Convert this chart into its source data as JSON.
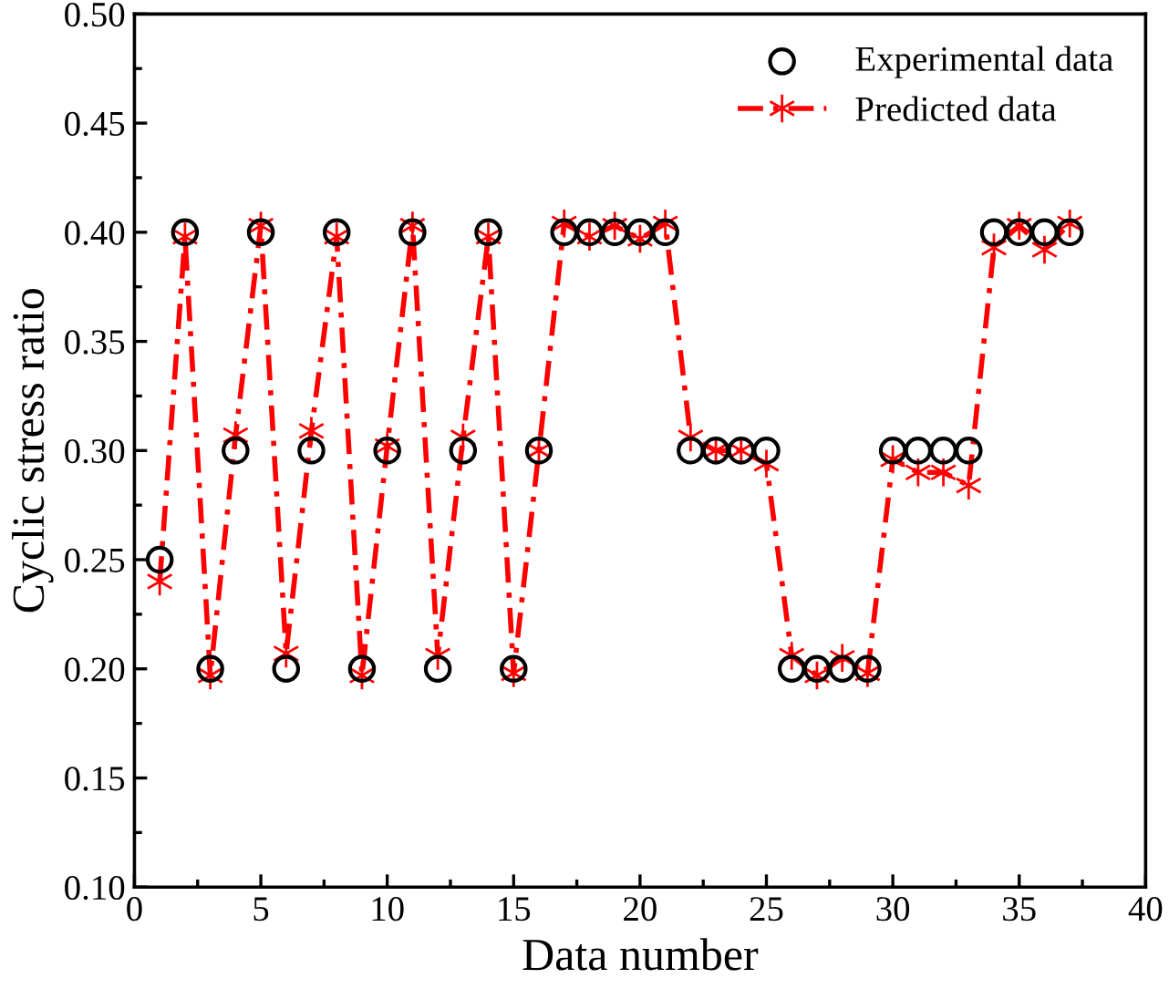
{
  "chart_data": {
    "type": "line",
    "xlabel": "Data number",
    "ylabel": "Cyclic stress ratio",
    "x": [
      1,
      2,
      3,
      4,
      5,
      6,
      7,
      8,
      9,
      10,
      11,
      12,
      13,
      14,
      15,
      16,
      17,
      18,
      19,
      20,
      21,
      22,
      23,
      24,
      25,
      26,
      27,
      28,
      29,
      30,
      31,
      32,
      33,
      34,
      35,
      36,
      37
    ],
    "series": [
      {
        "name": "Experimental data",
        "type": "scatter",
        "color": "#000000",
        "marker": "circle",
        "values": [
          0.25,
          0.4,
          0.2,
          0.3,
          0.4,
          0.2,
          0.3,
          0.4,
          0.2,
          0.3,
          0.4,
          0.2,
          0.3,
          0.4,
          0.2,
          0.3,
          0.4,
          0.4,
          0.4,
          0.4,
          0.4,
          0.3,
          0.3,
          0.3,
          0.3,
          0.2,
          0.2,
          0.2,
          0.2,
          0.3,
          0.3,
          0.3,
          0.3,
          0.4,
          0.4,
          0.4,
          0.4
        ]
      },
      {
        "name": "Predicted data",
        "color": "#ff0000",
        "marker": "cross",
        "line_style": "dashed",
        "values": [
          0.24,
          0.398,
          0.197,
          0.307,
          0.403,
          0.207,
          0.309,
          0.398,
          0.197,
          0.302,
          0.403,
          0.206,
          0.306,
          0.398,
          0.198,
          0.3,
          0.404,
          0.398,
          0.403,
          0.397,
          0.404,
          0.306,
          0.3,
          0.3,
          0.294,
          0.206,
          0.197,
          0.205,
          0.198,
          0.296,
          0.29,
          0.29,
          0.284,
          0.393,
          0.403,
          0.392,
          0.404
        ]
      }
    ],
    "xlim": [
      0,
      40
    ],
    "xticks": [
      0,
      5,
      10,
      15,
      20,
      25,
      30,
      35,
      40
    ],
    "ylim": [
      0.1,
      0.5
    ],
    "yticks": [
      {
        "value": 0.1,
        "label": "0.10"
      },
      {
        "value": 0.15,
        "label": "0.15"
      },
      {
        "value": 0.2,
        "label": "0.20"
      },
      {
        "value": 0.25,
        "label": "0.25"
      },
      {
        "value": 0.3,
        "label": "0.30"
      },
      {
        "value": 0.35,
        "label": "0.35"
      },
      {
        "value": 0.4,
        "label": "0.40"
      },
      {
        "value": 0.45,
        "label": "0.45"
      },
      {
        "value": 0.5,
        "label": "0.50"
      }
    ],
    "legend": "top right",
    "grid": false
  }
}
